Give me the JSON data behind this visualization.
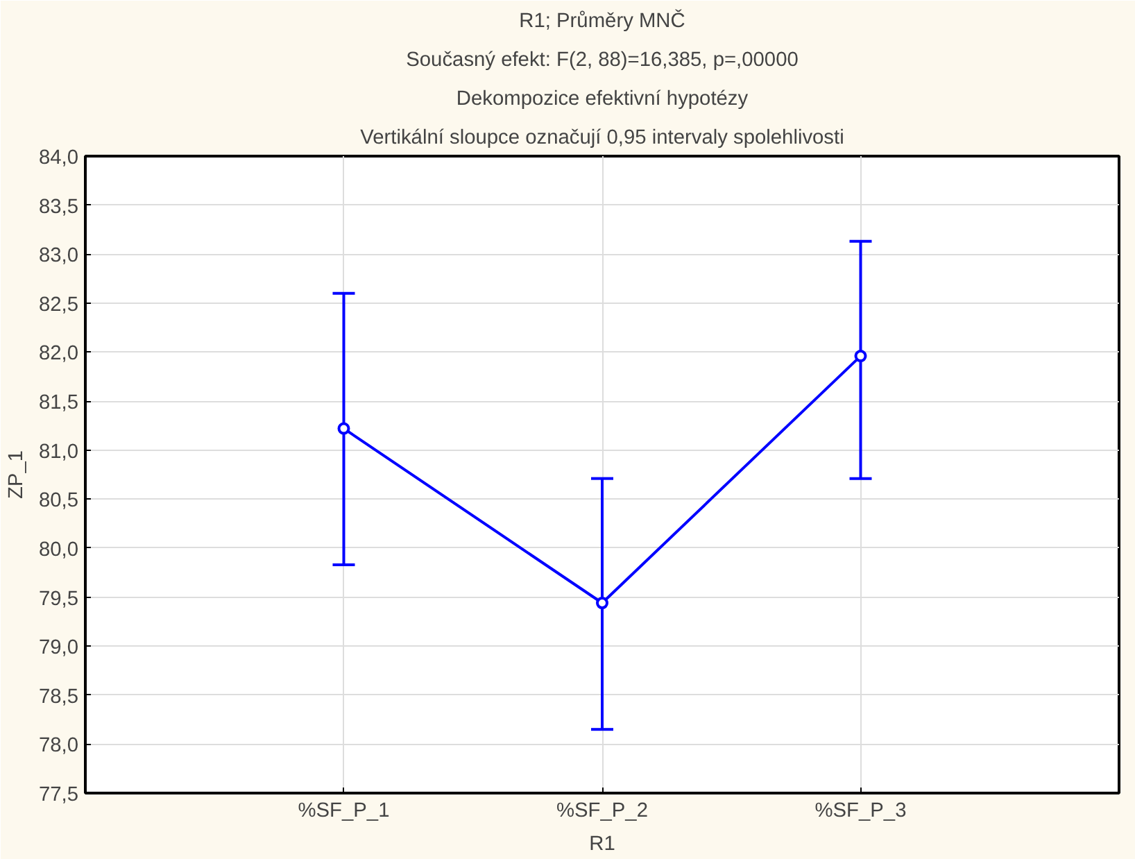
{
  "chart_data": {
    "type": "line",
    "title": "R1; Průměry MNČ",
    "subtitle": "Současný efekt: F(2, 88)=16,385, p=,00000",
    "annotations": [
      "Dekompozice efektivní hypotézy",
      "Vertikální sloupce označují 0,95 intervaly spolehlivosti"
    ],
    "xlabel": "R1",
    "ylabel": "ZP_1",
    "categories": [
      "%SF_P_1",
      "%SF_P_2",
      "%SF_P_3"
    ],
    "series": [
      {
        "color": "#0000ff",
        "values": [
          81.22,
          79.44,
          81.96
        ],
        "errors": [
          [
            79.83,
            82.6
          ],
          [
            78.15,
            80.71
          ],
          [
            80.71,
            83.13
          ]
        ]
      }
    ],
    "ylim": [
      77.5,
      84.0
    ],
    "yticks": [
      {
        "value": 77.5,
        "label": "77,5"
      },
      {
        "value": 78.0,
        "label": "78,0"
      },
      {
        "value": 78.5,
        "label": "78,5"
      },
      {
        "value": 79.0,
        "label": "79,0"
      },
      {
        "value": 79.5,
        "label": "79,5"
      },
      {
        "value": 80.0,
        "label": "80,0"
      },
      {
        "value": 80.5,
        "label": "80,5"
      },
      {
        "value": 81.0,
        "label": "81,0"
      },
      {
        "value": 81.5,
        "label": "81,5"
      },
      {
        "value": 82.0,
        "label": "82,0"
      },
      {
        "value": 82.5,
        "label": "82,5"
      },
      {
        "value": 83.0,
        "label": "83,0"
      },
      {
        "value": 83.5,
        "label": "83,5"
      },
      {
        "value": 84.0,
        "label": "84,0"
      }
    ],
    "grid": true,
    "marker": "circle",
    "line_style": "solid"
  }
}
